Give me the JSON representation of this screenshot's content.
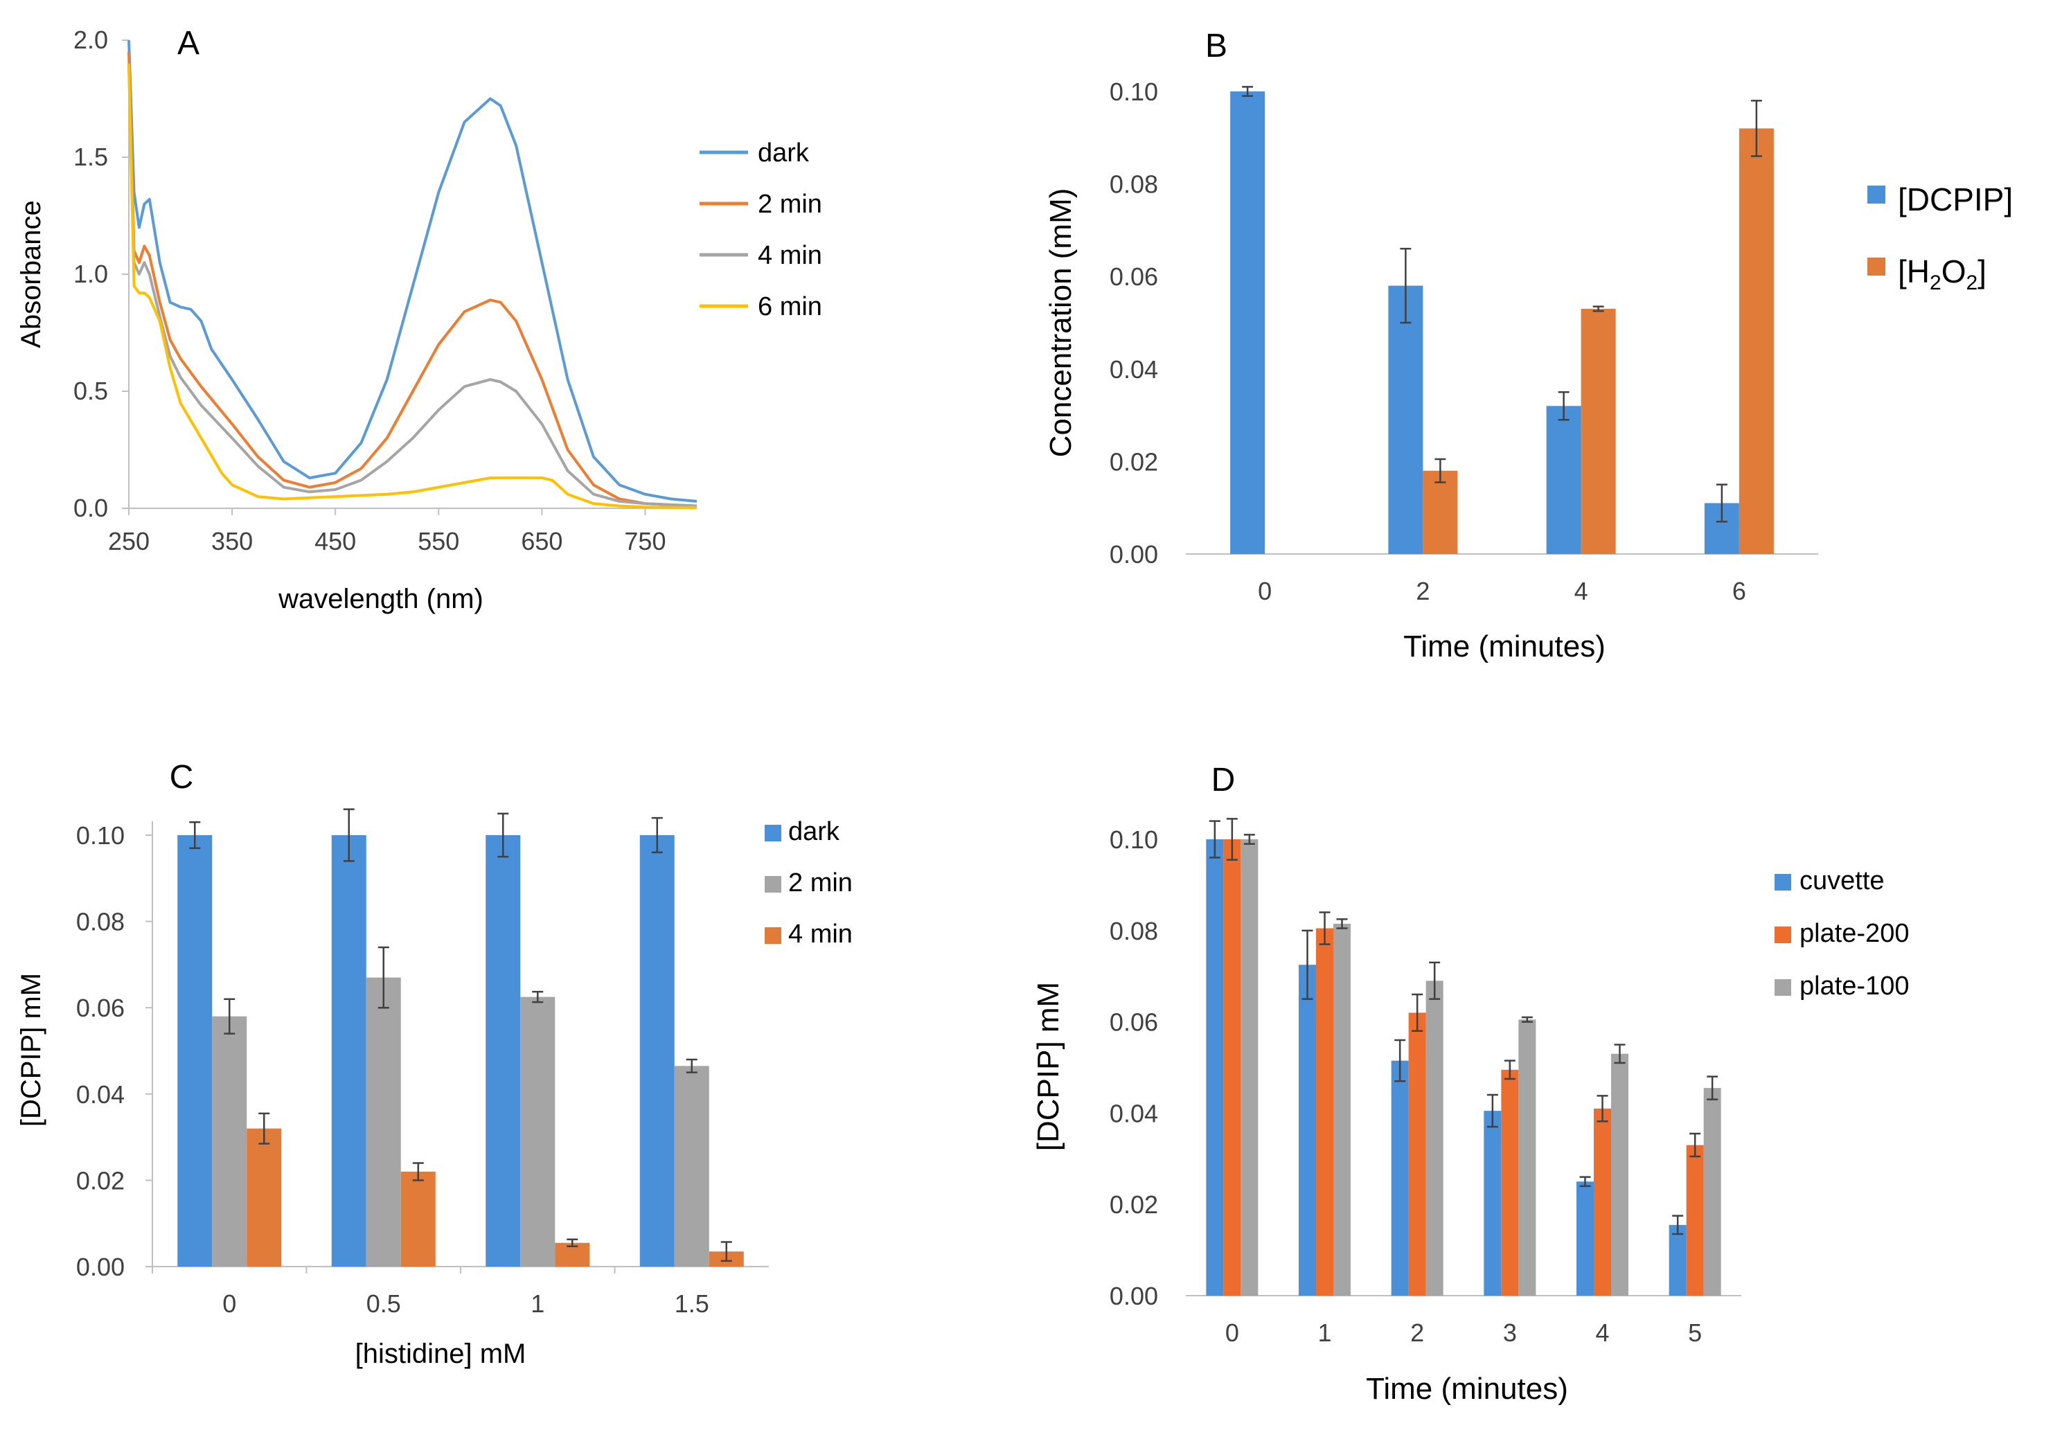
{
  "chart_data": [
    {
      "type": "line",
      "panel": "A",
      "title": "",
      "xlabel": "wavelength (nm)",
      "ylabel": "Absorbance",
      "xlim": [
        250,
        800
      ],
      "ylim": [
        0,
        2.0
      ],
      "xticks": [
        "250",
        "350",
        "450",
        "550",
        "650",
        "750"
      ],
      "xtick_values": [
        250,
        350,
        450,
        550,
        650,
        750
      ],
      "yticks": [
        "0.0",
        "0.5",
        "1.0",
        "1.5",
        "2.0"
      ],
      "ytick_values": [
        0,
        0.5,
        1.0,
        1.5,
        2.0
      ],
      "legend_position": "right",
      "series": [
        {
          "name": "dark",
          "color": "#5b9bd5",
          "x": [
            250,
            255,
            260,
            265,
            270,
            280,
            290,
            300,
            310,
            320,
            330,
            350,
            375,
            400,
            425,
            450,
            475,
            500,
            525,
            550,
            575,
            600,
            610,
            625,
            650,
            675,
            700,
            725,
            750,
            775,
            800
          ],
          "y": [
            2.0,
            1.35,
            1.2,
            1.3,
            1.32,
            1.05,
            0.88,
            0.86,
            0.85,
            0.8,
            0.68,
            0.55,
            0.38,
            0.2,
            0.13,
            0.15,
            0.28,
            0.55,
            0.95,
            1.35,
            1.65,
            1.75,
            1.72,
            1.55,
            1.05,
            0.55,
            0.22,
            0.1,
            0.06,
            0.04,
            0.03
          ]
        },
        {
          "name": "2 min",
          "color": "#ed7d31",
          "x": [
            250,
            255,
            260,
            265,
            270,
            280,
            290,
            300,
            320,
            350,
            375,
            400,
            425,
            450,
            475,
            500,
            525,
            550,
            575,
            600,
            610,
            625,
            650,
            675,
            700,
            725,
            750,
            800
          ],
          "y": [
            1.95,
            1.1,
            1.05,
            1.12,
            1.08,
            0.88,
            0.72,
            0.64,
            0.52,
            0.36,
            0.22,
            0.12,
            0.09,
            0.11,
            0.17,
            0.3,
            0.5,
            0.7,
            0.84,
            0.89,
            0.88,
            0.8,
            0.55,
            0.25,
            0.1,
            0.04,
            0.02,
            0.01
          ]
        },
        {
          "name": "4 min",
          "color": "#a5a5a5",
          "x": [
            250,
            255,
            260,
            265,
            270,
            280,
            290,
            300,
            320,
            350,
            375,
            400,
            425,
            450,
            475,
            500,
            525,
            550,
            575,
            600,
            610,
            625,
            650,
            675,
            700,
            725,
            750,
            800
          ],
          "y": [
            1.9,
            1.05,
            1.0,
            1.05,
            1.0,
            0.82,
            0.65,
            0.56,
            0.44,
            0.3,
            0.18,
            0.09,
            0.07,
            0.08,
            0.12,
            0.2,
            0.3,
            0.42,
            0.52,
            0.55,
            0.54,
            0.5,
            0.36,
            0.16,
            0.06,
            0.03,
            0.02,
            0.01
          ]
        },
        {
          "name": "6 min",
          "color": "#ffc000",
          "x": [
            250,
            255,
            260,
            265,
            270,
            280,
            290,
            300,
            320,
            340,
            350,
            375,
            400,
            425,
            450,
            475,
            500,
            525,
            550,
            575,
            600,
            625,
            650,
            660,
            675,
            700,
            725,
            750,
            800
          ],
          "y": [
            1.9,
            0.95,
            0.92,
            0.92,
            0.9,
            0.8,
            0.6,
            0.45,
            0.3,
            0.15,
            0.1,
            0.05,
            0.04,
            0.045,
            0.05,
            0.055,
            0.06,
            0.07,
            0.09,
            0.11,
            0.13,
            0.13,
            0.13,
            0.12,
            0.06,
            0.02,
            0.01,
            0.005,
            0.003
          ]
        }
      ]
    },
    {
      "type": "bar",
      "panel": "B",
      "title": "",
      "xlabel": "Time (minutes)",
      "ylabel": "Concentration (mM)",
      "categories": [
        "0",
        "2",
        "4",
        "6"
      ],
      "ylim": [
        0,
        0.1
      ],
      "yticks": [
        "0.00",
        "0.02",
        "0.04",
        "0.06",
        "0.08",
        "0.10"
      ],
      "ytick_values": [
        0,
        0.02,
        0.04,
        0.06,
        0.08,
        0.1
      ],
      "legend_position": "right",
      "series": [
        {
          "name": "[DCPIP]",
          "color": "#4a90d9",
          "values": [
            0.1,
            0.058,
            0.032,
            0.011
          ],
          "errors": [
            0.001,
            0.008,
            0.003,
            0.004
          ]
        },
        {
          "name": "[H2O2]",
          "legend_main": "[H",
          "legend_sub1": "2",
          "legend_mid": "O",
          "legend_sub2": "2",
          "legend_end": "]",
          "color": "#e07b39",
          "values": [
            null,
            0.018,
            0.053,
            0.092
          ],
          "errors": [
            null,
            0.0025,
            0.0005,
            0.006
          ]
        }
      ]
    },
    {
      "type": "bar",
      "panel": "C",
      "title": "",
      "xlabel": "[histidine] mM",
      "ylabel": "[DCPIP] mM",
      "categories": [
        "0",
        "0.5",
        "1",
        "1.5"
      ],
      "ylim": [
        0,
        0.1
      ],
      "yticks": [
        "0.00",
        "0.02",
        "0.04",
        "0.06",
        "0.08",
        "0.10"
      ],
      "ytick_values": [
        0,
        0.02,
        0.04,
        0.06,
        0.08,
        0.1
      ],
      "legend_position": "top-right",
      "series": [
        {
          "name": "dark",
          "color": "#4a90d9",
          "values": [
            0.1,
            0.1,
            0.1,
            0.1
          ],
          "errors": [
            0.003,
            0.006,
            0.005,
            0.004
          ]
        },
        {
          "name": "2 min",
          "color": "#a5a5a5",
          "values": [
            0.058,
            0.067,
            0.0625,
            0.0465
          ],
          "errors": [
            0.004,
            0.007,
            0.0012,
            0.0015
          ]
        },
        {
          "name": "4 min",
          "color": "#e07b39",
          "values": [
            0.032,
            0.022,
            0.0055,
            0.0035
          ],
          "errors": [
            0.0035,
            0.002,
            0.0008,
            0.0022
          ]
        }
      ]
    },
    {
      "type": "bar",
      "panel": "D",
      "title": "",
      "xlabel": "Time (minutes)",
      "ylabel": "[DCPIP] mM",
      "categories": [
        "0",
        "1",
        "2",
        "3",
        "4",
        "5"
      ],
      "ylim": [
        0,
        0.1
      ],
      "yticks": [
        "0.00",
        "0.02",
        "0.04",
        "0.06",
        "0.08",
        "0.10"
      ],
      "ytick_values": [
        0,
        0.02,
        0.04,
        0.06,
        0.08,
        0.1
      ],
      "legend_position": "right",
      "series": [
        {
          "name": "cuvette",
          "color": "#4a90d9",
          "values": [
            0.1,
            0.0725,
            0.0515,
            0.0405,
            0.025,
            0.0155
          ],
          "errors": [
            0.004,
            0.0075,
            0.0045,
            0.0035,
            0.001,
            0.002
          ]
        },
        {
          "name": "plate-200",
          "color": "#ed6d2e",
          "values": [
            0.1,
            0.0805,
            0.062,
            0.0495,
            0.041,
            0.033
          ],
          "errors": [
            0.0045,
            0.0035,
            0.004,
            0.002,
            0.0028,
            0.0025
          ]
        },
        {
          "name": "plate-100",
          "color": "#a5a5a5",
          "values": [
            0.1,
            0.0815,
            0.069,
            0.0605,
            0.053,
            0.0455
          ],
          "errors": [
            0.001,
            0.001,
            0.004,
            0.0005,
            0.002,
            0.0025
          ]
        }
      ]
    }
  ]
}
